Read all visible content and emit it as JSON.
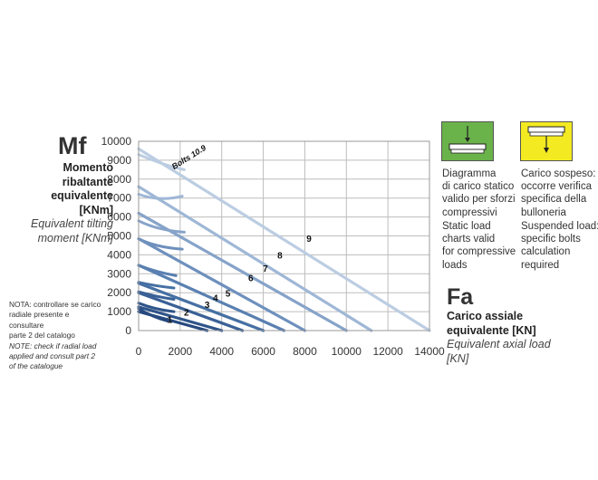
{
  "left_label": {
    "symbol": "Mf",
    "line1": "Momento",
    "line2": "ribaltante",
    "line3": "equivalente",
    "line4": "[KNm]",
    "line5": "Equivalent tilting",
    "line6": "moment [KNm]"
  },
  "note": {
    "it_line1": "NOTA: controllare se carico",
    "it_line2": "radiale presente e consultare",
    "it_line3": "parte 2 del catalogo",
    "en_line1": "NOTE: check if radial load",
    "en_line2": "applied and consult part 2",
    "en_line3": "of the catalogue"
  },
  "right_label": {
    "symbol": "Fa",
    "line1": "Carico assiale",
    "line2": "equivalente [KN]",
    "line3": "Equivalent axial load",
    "line4": "[KN]"
  },
  "legend": {
    "static": {
      "color": "#6ab24a",
      "it_line1": "Diagramma",
      "it_line2": "di carico statico",
      "it_line3": "valido per sforzi",
      "it_line4": "compressivi",
      "en_line1": "Static load",
      "en_line2": "charts valid",
      "en_line3": "for compressive",
      "en_line4": "loads"
    },
    "suspended": {
      "color": "#f4ea21",
      "it_line1": "Carico sospeso:",
      "it_line2": "occorre verifica",
      "it_line3": "specifica della",
      "it_line4": "bulloneria",
      "en_line1": "Suspended load:",
      "en_line2": "specific bolts",
      "en_line3": "calculation",
      "en_line4": "required"
    }
  },
  "chart_data": {
    "type": "line",
    "xlim": [
      0,
      14000
    ],
    "ylim": [
      0,
      10000
    ],
    "x_ticks": [
      "0",
      "2000",
      "4000",
      "6000",
      "8000",
      "10000",
      "12000",
      "14000"
    ],
    "y_ticks": [
      "0",
      "1000",
      "2000",
      "3000",
      "4000",
      "5000",
      "6000",
      "7000",
      "8000",
      "9000",
      "10000"
    ],
    "grid": true,
    "bolts_label": "Bolts 10.9",
    "series": [
      {
        "name": "1",
        "color": "#26497f",
        "points": [
          [
            0,
            1000
          ],
          [
            3300,
            0
          ]
        ],
        "bolts": [
          [
            0,
            1150
          ],
          [
            700,
            700
          ],
          [
            1400,
            500
          ]
        ]
      },
      {
        "name": "2",
        "color": "#2e5489",
        "points": [
          [
            0,
            1250
          ],
          [
            4000,
            0
          ]
        ],
        "bolts": [
          [
            0,
            1450
          ],
          [
            800,
            1100
          ],
          [
            1700,
            1000
          ]
        ]
      },
      {
        "name": "3",
        "color": "#3a6196",
        "points": [
          [
            0,
            2000
          ],
          [
            5000,
            0
          ]
        ],
        "bolts": [
          [
            0,
            2050
          ],
          [
            800,
            1800
          ],
          [
            1700,
            1650
          ]
        ]
      },
      {
        "name": "4",
        "color": "#4670a3",
        "points": [
          [
            0,
            2500
          ],
          [
            6000,
            0
          ]
        ],
        "bolts": [
          [
            0,
            2550
          ],
          [
            800,
            2350
          ],
          [
            1700,
            2250
          ]
        ]
      },
      {
        "name": "5",
        "color": "#5a80b1",
        "points": [
          [
            0,
            3450
          ],
          [
            7000,
            0
          ]
        ],
        "bolts": [
          [
            0,
            3450
          ],
          [
            800,
            3100
          ],
          [
            1800,
            2900
          ]
        ]
      },
      {
        "name": "6",
        "color": "#6e90bd",
        "points": [
          [
            0,
            4850
          ],
          [
            8000,
            0
          ]
        ],
        "bolts": [
          [
            0,
            4850
          ],
          [
            800,
            4400
          ],
          [
            2100,
            4300
          ]
        ]
      },
      {
        "name": "7",
        "color": "#86a3c9",
        "points": [
          [
            0,
            6200
          ],
          [
            10000,
            0
          ]
        ],
        "bolts": [
          [
            0,
            5800
          ],
          [
            900,
            5300
          ],
          [
            2200,
            5200
          ]
        ]
      },
      {
        "name": "8",
        "color": "#9fb7d6",
        "points": [
          [
            0,
            7600
          ],
          [
            11200,
            0
          ]
        ],
        "bolts": [
          [
            0,
            7200
          ],
          [
            1000,
            6800
          ],
          [
            2100,
            7100
          ]
        ]
      },
      {
        "name": "9",
        "color": "#bccde2",
        "points": [
          [
            0,
            9600
          ],
          [
            14000,
            0
          ]
        ],
        "bolts": [
          [
            0,
            9300
          ],
          [
            1300,
            8700
          ],
          [
            2200,
            8500
          ]
        ]
      }
    ],
    "label_positions": [
      {
        "name": "1",
        "x": 1500,
        "y": 400
      },
      {
        "name": "2",
        "x": 2300,
        "y": 800
      },
      {
        "name": "3",
        "x": 3300,
        "y": 1200
      },
      {
        "name": "4",
        "x": 3700,
        "y": 1550
      },
      {
        "name": "5",
        "x": 4300,
        "y": 1800
      },
      {
        "name": "6",
        "x": 5400,
        "y": 2600
      },
      {
        "name": "7",
        "x": 6100,
        "y": 3100
      },
      {
        "name": "8",
        "x": 6800,
        "y": 3800
      },
      {
        "name": "9",
        "x": 8200,
        "y": 4700
      }
    ]
  }
}
